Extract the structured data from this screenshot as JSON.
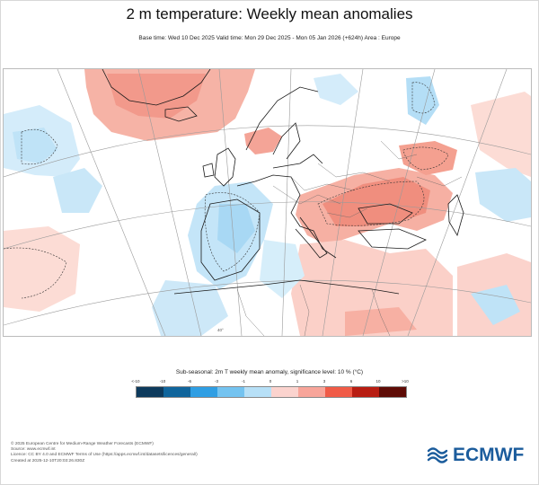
{
  "header": {
    "title": "2 m temperature: Weekly mean anomalies",
    "subtitle": "Base time: Wed 10 Dec 2025 Valid time: Mon 29 Dec 2025 - Mon 05 Jan 2026 (+624h) Area : Europe"
  },
  "map": {
    "region": "Europe",
    "grid_label": "40°"
  },
  "legend": {
    "title": "Sub-seasonal: 2m T weekly mean anomaly, significance level: 10 % (°C)",
    "ticks": [
      "<-10",
      "-10",
      "-6",
      "-3",
      "-1",
      "0",
      "1",
      "3",
      "6",
      "10",
      ">10"
    ],
    "colors": [
      "#0d3a5c",
      "#10659c",
      "#2f9ee3",
      "#74c3f0",
      "#b7e0f7",
      "#dbeffa",
      "#fbd3ce",
      "#f8a59a",
      "#f05b47",
      "#b81d12",
      "#5e0b06"
    ]
  },
  "footer": {
    "lines": [
      "© 2025 European Centre for Medium-Range Weather Forecasts (ECMWF)",
      "Source: www.ecmwf.int",
      "Licence: CC BY 4.0 and ECMWF Terms of Use (https://apps.ecmwf.int/datasets/licences/general/)",
      "Created at 2025-12-10T20:03:26.830Z"
    ]
  },
  "logo": {
    "text": "ECMWF",
    "color": "#1b5c9c"
  }
}
